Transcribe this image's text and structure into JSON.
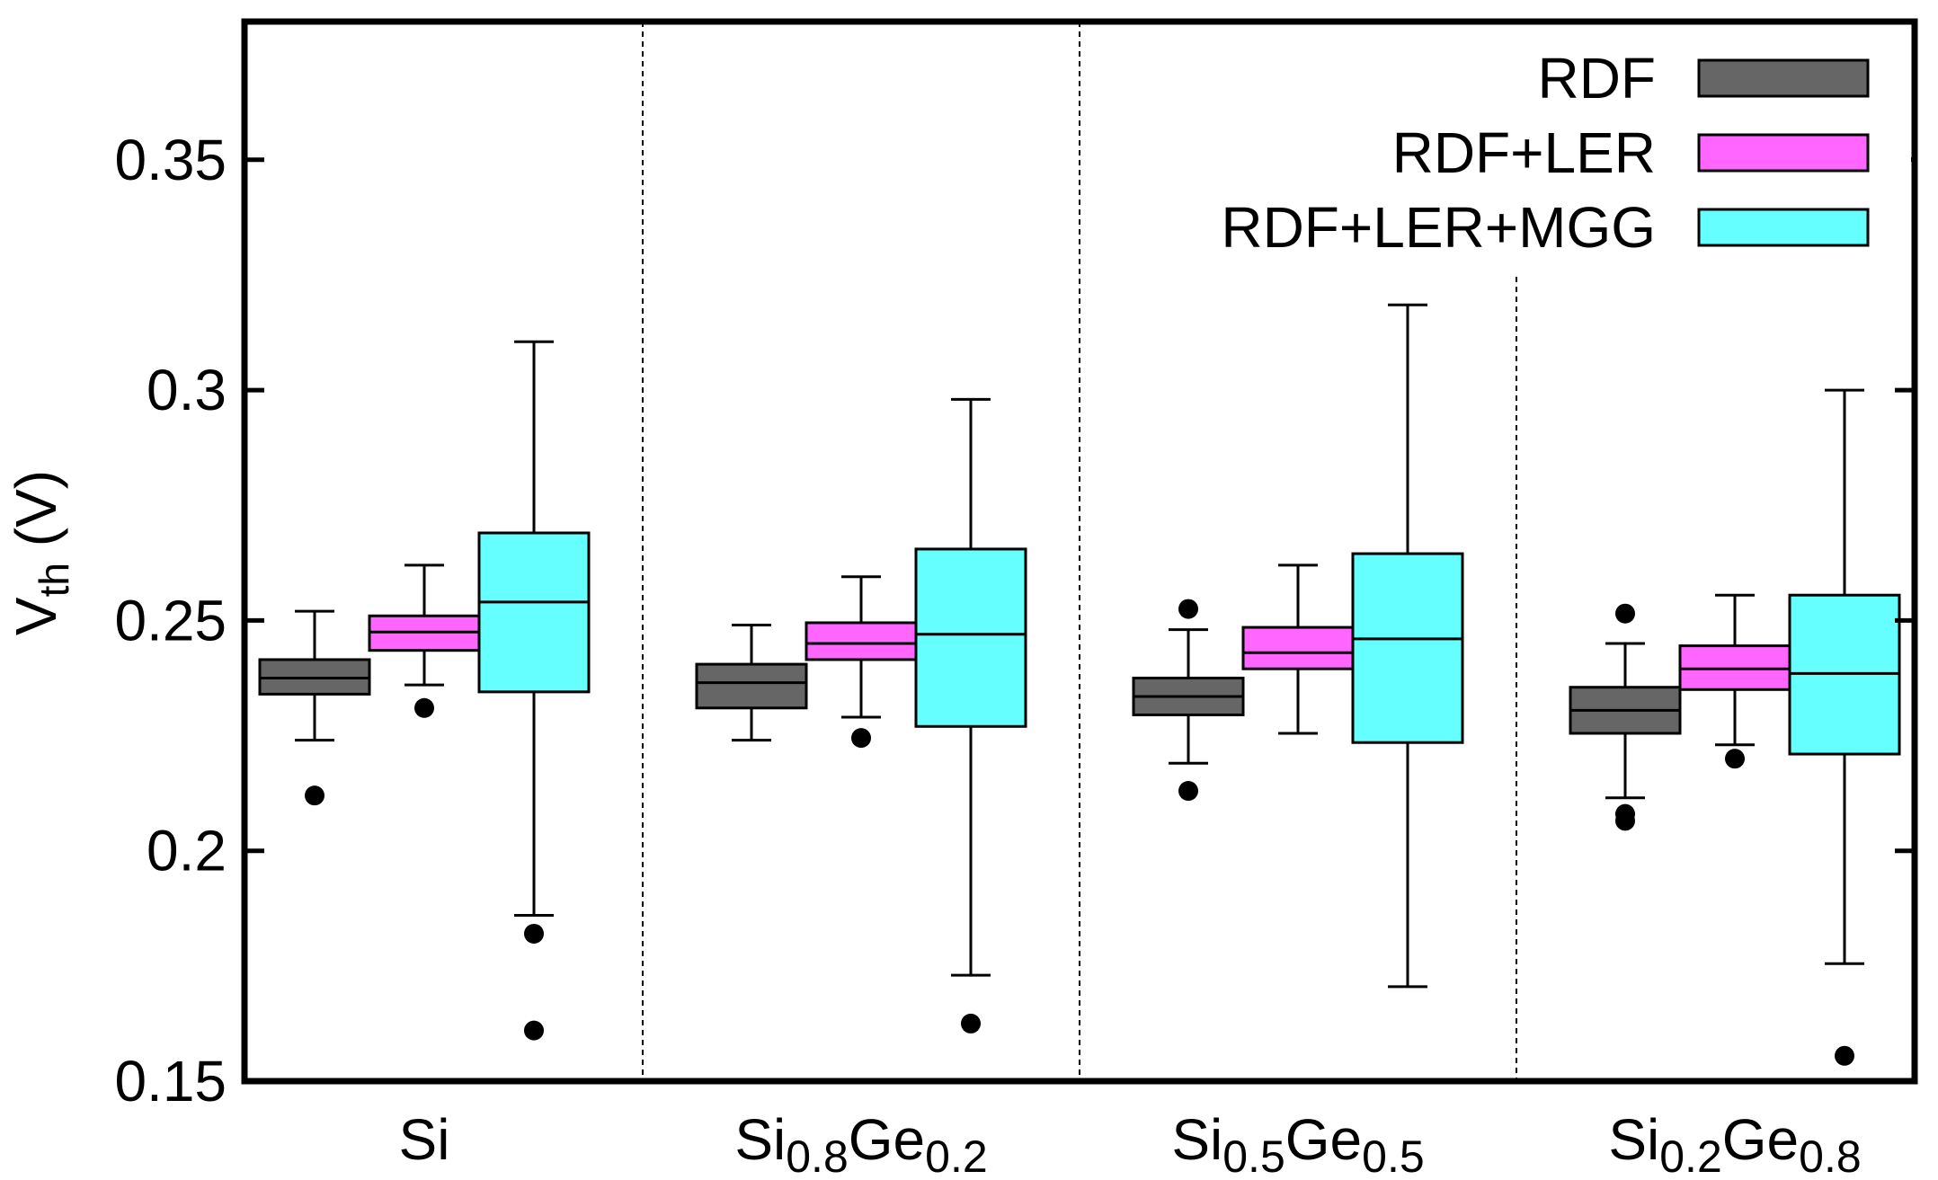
{
  "chart_data": {
    "type": "box",
    "title": "",
    "xlabel": "",
    "ylabel": {
      "main": "V",
      "sub": "th",
      "unit": " (V)"
    },
    "ylim": [
      0.15,
      0.38
    ],
    "yticks": [
      {
        "value": 0.15,
        "label": "0.15"
      },
      {
        "value": 0.2,
        "label": "0.2"
      },
      {
        "value": 0.25,
        "label": "0.25"
      },
      {
        "value": 0.3,
        "label": "0.3"
      },
      {
        "value": 0.35,
        "label": "0.35"
      }
    ],
    "grid": false,
    "legend_position": "top-right",
    "categories": [
      {
        "id": "si",
        "parts": [
          {
            "t": "Si",
            "sub": false
          }
        ]
      },
      {
        "id": "si08ge02",
        "parts": [
          {
            "t": "Si",
            "sub": false
          },
          {
            "t": "0.8",
            "sub": true
          },
          {
            "t": "Ge",
            "sub": false
          },
          {
            "t": "0.2",
            "sub": true
          }
        ]
      },
      {
        "id": "si05ge05",
        "parts": [
          {
            "t": "Si",
            "sub": false
          },
          {
            "t": "0.5",
            "sub": true
          },
          {
            "t": "Ge",
            "sub": false
          },
          {
            "t": "0.5",
            "sub": true
          }
        ]
      },
      {
        "id": "si02ge08",
        "parts": [
          {
            "t": "Si",
            "sub": false
          },
          {
            "t": "0.2",
            "sub": true
          },
          {
            "t": "Ge",
            "sub": false
          },
          {
            "t": "0.8",
            "sub": true
          }
        ]
      }
    ],
    "series": [
      {
        "name": "RDF",
        "color": "#666666",
        "boxes": [
          {
            "whisker_low": 0.224,
            "q1": 0.234,
            "median": 0.2375,
            "q3": 0.2415,
            "whisker_high": 0.252,
            "outliers": [
              0.212
            ]
          },
          {
            "whisker_low": 0.224,
            "q1": 0.231,
            "median": 0.2365,
            "q3": 0.2405,
            "whisker_high": 0.249,
            "outliers": []
          },
          {
            "whisker_low": 0.219,
            "q1": 0.2295,
            "median": 0.2335,
            "q3": 0.2375,
            "whisker_high": 0.248,
            "outliers": [
              0.213,
              0.2525
            ]
          },
          {
            "whisker_low": 0.2115,
            "q1": 0.2255,
            "median": 0.2305,
            "q3": 0.2355,
            "whisker_high": 0.245,
            "outliers": [
              0.2065,
              0.208,
              0.2515
            ]
          }
        ]
      },
      {
        "name": "RDF+LER",
        "color": "#ff66ff",
        "boxes": [
          {
            "whisker_low": 0.236,
            "q1": 0.2435,
            "median": 0.2475,
            "q3": 0.251,
            "whisker_high": 0.262,
            "outliers": [
              0.231
            ]
          },
          {
            "whisker_low": 0.229,
            "q1": 0.2415,
            "median": 0.245,
            "q3": 0.2495,
            "whisker_high": 0.2595,
            "outliers": [
              0.2245
            ]
          },
          {
            "whisker_low": 0.2255,
            "q1": 0.2395,
            "median": 0.243,
            "q3": 0.2485,
            "whisker_high": 0.262,
            "outliers": []
          },
          {
            "whisker_low": 0.223,
            "q1": 0.235,
            "median": 0.2395,
            "q3": 0.2445,
            "whisker_high": 0.2555,
            "outliers": [
              0.22
            ]
          }
        ]
      },
      {
        "name": "RDF+LER+MGG",
        "color": "#66ffff",
        "boxes": [
          {
            "whisker_low": 0.186,
            "q1": 0.2345,
            "median": 0.254,
            "q3": 0.269,
            "whisker_high": 0.3105,
            "outliers": [
              0.182,
              0.161
            ]
          },
          {
            "whisker_low": 0.173,
            "q1": 0.227,
            "median": 0.247,
            "q3": 0.2655,
            "whisker_high": 0.298,
            "outliers": [
              0.1625
            ]
          },
          {
            "whisker_low": 0.1705,
            "q1": 0.2235,
            "median": 0.246,
            "q3": 0.2645,
            "whisker_high": 0.3185,
            "outliers": []
          },
          {
            "whisker_low": 0.1755,
            "q1": 0.221,
            "median": 0.2385,
            "q3": 0.2555,
            "whisker_high": 0.3,
            "outliers": [
              0.1555
            ]
          }
        ]
      }
    ]
  }
}
